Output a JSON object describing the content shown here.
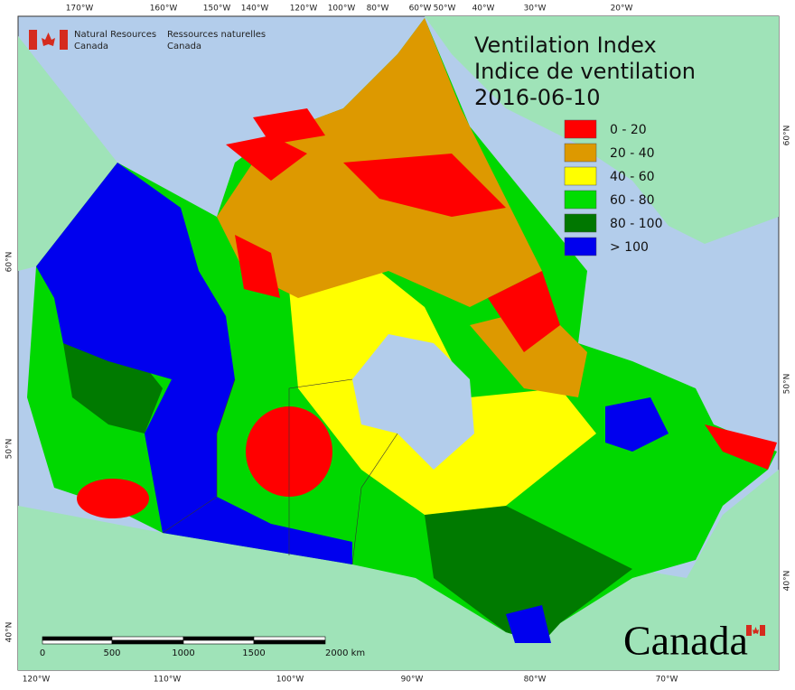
{
  "header": {
    "agency_en": [
      "Natural Resources",
      "Canada"
    ],
    "agency_fr": [
      "Ressources naturelles",
      "Canada"
    ]
  },
  "title": {
    "line1": "Ventilation Index",
    "line2": "Indice de ventilation",
    "date": "2016-06-10"
  },
  "legend": {
    "items": [
      {
        "label": "0 - 20",
        "color": "#ff0000"
      },
      {
        "label": "20 - 40",
        "color": "#dd9900"
      },
      {
        "label": "40 - 60",
        "color": "#ffff00"
      },
      {
        "label": "60 - 80",
        "color": "#00dd00"
      },
      {
        "label": "80 - 100",
        "color": "#007700"
      },
      {
        "label": "> 100",
        "color": "#0000ee"
      }
    ]
  },
  "graticule": {
    "top": [
      "170°W",
      "160°W",
      "150°W",
      "140°W",
      "120°W",
      "100°W",
      "80°W",
      "60°W",
      "50°W",
      "40°W",
      "30°W",
      "20°W"
    ],
    "bottom": [
      "120°W",
      "110°W",
      "100°W",
      "90°W",
      "80°W",
      "70°W"
    ],
    "left": [
      "60°N",
      "50°N",
      "40°N"
    ],
    "right": [
      "60°N",
      "50°N",
      "40°N"
    ]
  },
  "scale_bar": {
    "labels": [
      "0",
      "500",
      "1000",
      "1500",
      "2000 km"
    ]
  },
  "wordmark": "Canada"
}
